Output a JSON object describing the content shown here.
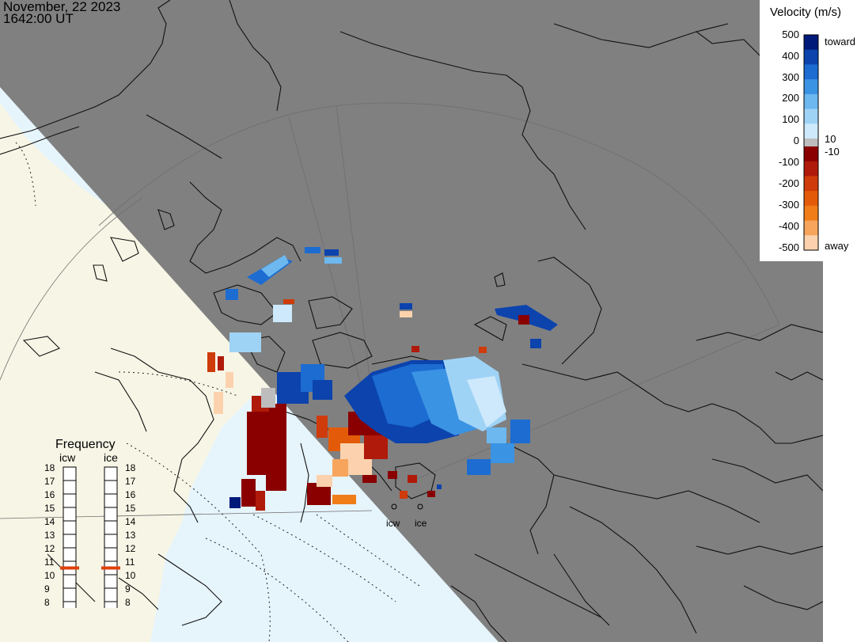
{
  "header": {
    "date": "November, 22 2023",
    "time": "1642:00 UT"
  },
  "colorbar": {
    "title": "Velocity (m/s)",
    "ticks": [
      "500",
      "400",
      "300",
      "200",
      "100",
      "10",
      "0",
      "-10",
      "-100",
      "-200",
      "-300",
      "-400",
      "-500"
    ],
    "toward_label": "toward",
    "away_label": "away",
    "toward_colors": [
      "#cde9fb",
      "#9fd3f6",
      "#6cb8ef",
      "#3a93e3",
      "#1c6cd2",
      "#0c43ad",
      "#001a7a"
    ],
    "away_colors": [
      "#8a0000",
      "#b01a0a",
      "#cf3b0a",
      "#e35b08",
      "#f07d18",
      "#f7a55c",
      "#fbd2ad"
    ],
    "zero_color": "#bdbdbd"
  },
  "frequency": {
    "title": "Frequency",
    "radars": [
      "icw",
      "ice"
    ],
    "scale": [
      "18",
      "17",
      "16",
      "15",
      "14",
      "13",
      "12",
      "11",
      "10",
      "9",
      "8"
    ],
    "icw_value": 10.5,
    "ice_value": 10.5,
    "marker_color": "#e0400a"
  },
  "radar_sites": {
    "icw": "icw",
    "ice": "ice"
  },
  "map": {
    "night_color": "#808080",
    "ocean_day_color": "#e6f4fc",
    "land_day_color": "#f7f6e6",
    "coastline_color": "#111111",
    "grid_color": "#6e6e6e"
  }
}
